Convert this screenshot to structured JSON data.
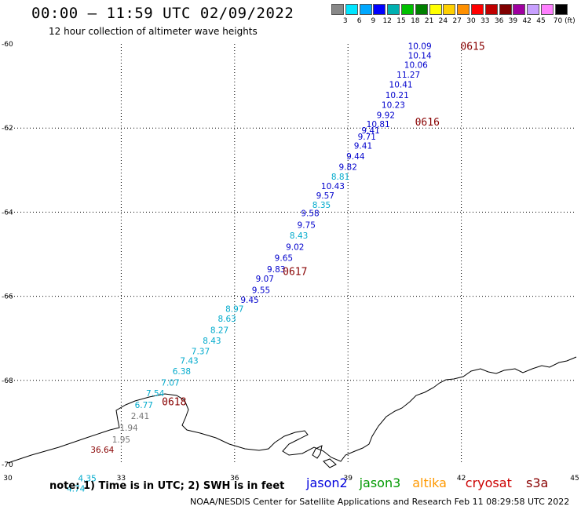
{
  "title": "00:00 – 11:59 UTC 02/09/2022",
  "subtitle": "12 hour collection of altimeter wave heights",
  "scale": {
    "labels": [
      "3",
      "6",
      "9",
      "12",
      "15",
      "18",
      "21",
      "24",
      "27",
      "30",
      "33",
      "36",
      "39",
      "42",
      "45",
      "70 (ft)"
    ],
    "colors": [
      "#888888",
      "#00e5ff",
      "#00a8ff",
      "#0000ff",
      "#00b0b0",
      "#00c000",
      "#008000",
      "#ffff00",
      "#ffd000",
      "#ff9000",
      "#ff0000",
      "#c00000",
      "#800000",
      "#a000a0",
      "#c8a0ff",
      "#ff80ff",
      "#000000"
    ]
  },
  "axes": {
    "lon_ticks": [
      "30",
      "33",
      "36",
      "39",
      "42",
      "45"
    ],
    "lat_ticks": [
      "-60",
      "-62",
      "-64",
      "-66",
      "-68",
      "-70"
    ]
  },
  "time_labels": [
    {
      "text": "0615",
      "lon": 42.3,
      "lat": -60.05
    },
    {
      "text": "0616",
      "lon": 41.1,
      "lat": -61.85
    },
    {
      "text": "0617",
      "lon": 37.6,
      "lat": -65.4
    },
    {
      "text": "0618",
      "lon": 34.4,
      "lat": -68.5
    }
  ],
  "measurements": [
    {
      "v": "10.09",
      "lon": 40.9,
      "lat": -60.05,
      "c": "#0000cc"
    },
    {
      "v": "10.14",
      "lon": 40.9,
      "lat": -60.27,
      "c": "#0000cc"
    },
    {
      "v": "10.06",
      "lon": 40.8,
      "lat": -60.49,
      "c": "#0000cc"
    },
    {
      "v": "11.27",
      "lon": 40.6,
      "lat": -60.73,
      "c": "#0000cc"
    },
    {
      "v": "10.41",
      "lon": 40.4,
      "lat": -60.96,
      "c": "#0000cc"
    },
    {
      "v": "10.21",
      "lon": 40.3,
      "lat": -61.21,
      "c": "#0000cc"
    },
    {
      "v": "10.23",
      "lon": 40.2,
      "lat": -61.45,
      "c": "#0000cc"
    },
    {
      "v": "9.92",
      "lon": 40.0,
      "lat": -61.69,
      "c": "#0000cc"
    },
    {
      "v": "10.81",
      "lon": 39.8,
      "lat": -61.9,
      "c": "#0000cc"
    },
    {
      "v": "9.41",
      "lon": 39.6,
      "lat": -62.05,
      "c": "#0000cc"
    },
    {
      "v": "9.71",
      "lon": 39.5,
      "lat": -62.2,
      "c": "#0000cc"
    },
    {
      "v": "9.41",
      "lon": 39.4,
      "lat": -62.42,
      "c": "#0000cc"
    },
    {
      "v": "9.44",
      "lon": 39.2,
      "lat": -62.67,
      "c": "#0000cc"
    },
    {
      "v": "9.82",
      "lon": 39.0,
      "lat": -62.92,
      "c": "#0000cc"
    },
    {
      "v": "8.81",
      "lon": 38.8,
      "lat": -63.15,
      "c": "#00aacc"
    },
    {
      "v": "10.43",
      "lon": 38.6,
      "lat": -63.38,
      "c": "#0000cc"
    },
    {
      "v": "9.57",
      "lon": 38.4,
      "lat": -63.6,
      "c": "#0000cc"
    },
    {
      "v": "8.35",
      "lon": 38.3,
      "lat": -63.82,
      "c": "#00aacc"
    },
    {
      "v": "9.58",
      "lon": 38.0,
      "lat": -64.02,
      "c": "#0000cc"
    },
    {
      "v": "9.75",
      "lon": 37.9,
      "lat": -64.3,
      "c": "#0000cc"
    },
    {
      "v": "8.43",
      "lon": 37.7,
      "lat": -64.55,
      "c": "#00aacc"
    },
    {
      "v": "9.02",
      "lon": 37.6,
      "lat": -64.82,
      "c": "#0000cc"
    },
    {
      "v": "9.65",
      "lon": 37.3,
      "lat": -65.08,
      "c": "#0000cc"
    },
    {
      "v": "9.83",
      "lon": 37.1,
      "lat": -65.35,
      "c": "#0000cc"
    },
    {
      "v": "9.07",
      "lon": 36.8,
      "lat": -65.58,
      "c": "#0000cc"
    },
    {
      "v": "9.55",
      "lon": 36.7,
      "lat": -65.85,
      "c": "#0000cc"
    },
    {
      "v": "9.45",
      "lon": 36.4,
      "lat": -66.08,
      "c": "#0000cc"
    },
    {
      "v": "8.97",
      "lon": 36.0,
      "lat": -66.3,
      "c": "#00aacc"
    },
    {
      "v": "8.63",
      "lon": 35.8,
      "lat": -66.53,
      "c": "#00aacc"
    },
    {
      "v": "8.27",
      "lon": 35.6,
      "lat": -66.8,
      "c": "#00aacc"
    },
    {
      "v": "8.43",
      "lon": 35.4,
      "lat": -67.05,
      "c": "#00aacc"
    },
    {
      "v": "7.37",
      "lon": 35.1,
      "lat": -67.3,
      "c": "#00aacc"
    },
    {
      "v": "7.43",
      "lon": 34.8,
      "lat": -67.53,
      "c": "#00aacc"
    },
    {
      "v": "6.38",
      "lon": 34.6,
      "lat": -67.78,
      "c": "#00aacc"
    },
    {
      "v": "7.07",
      "lon": 34.3,
      "lat": -68.05,
      "c": "#00aacc"
    },
    {
      "v": "7.54",
      "lon": 33.9,
      "lat": -68.3,
      "c": "#00aacc"
    },
    {
      "v": "6.77",
      "lon": 33.6,
      "lat": -68.58,
      "c": "#00aacc"
    },
    {
      "v": "2.41",
      "lon": 33.5,
      "lat": -68.84,
      "c": "#777777"
    },
    {
      "v": "1.94",
      "lon": 33.2,
      "lat": -69.12,
      "c": "#777777"
    },
    {
      "v": "1.95",
      "lon": 33.0,
      "lat": -69.4,
      "c": "#777777"
    },
    {
      "v": "36.64",
      "lon": 32.5,
      "lat": -69.65,
      "c": "#880000"
    },
    {
      "v": "4.35",
      "lon": 32.1,
      "lat": -70.33,
      "c": "#00aacc"
    },
    {
      "v": "4.74",
      "lon": 31.8,
      "lat": -70.57,
      "c": "#00aacc"
    }
  ],
  "note": "note:  1) Time is in UTC;  2) SWH is in feet",
  "legend": [
    {
      "name": "jason2",
      "color": "#0000dd"
    },
    {
      "name": "jason3",
      "color": "#009900"
    },
    {
      "name": "altika",
      "color": "#ff9900"
    },
    {
      "name": "cryosat",
      "color": "#cc0000"
    },
    {
      "name": "s3a",
      "color": "#880000"
    }
  ],
  "footer": "NOAA/NESDIS Center for Satellite Applications and Research     Feb 11 08:29:58 UTC 2022"
}
